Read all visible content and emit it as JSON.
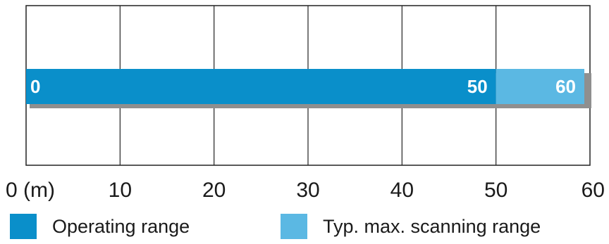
{
  "chart_data": {
    "type": "bar",
    "orientation": "horizontal",
    "xlim": [
      0,
      60
    ],
    "x_ticks": [
      {
        "value": 0,
        "label": "0 (m)"
      },
      {
        "value": 10,
        "label": "10"
      },
      {
        "value": 20,
        "label": "20"
      },
      {
        "value": 30,
        "label": "30"
      },
      {
        "value": 40,
        "label": "40"
      },
      {
        "value": 50,
        "label": "50"
      },
      {
        "value": 60,
        "label": "60"
      }
    ],
    "grid": true,
    "segments": [
      {
        "name": "Operating range",
        "start": 0,
        "end": 50,
        "start_label": "0",
        "end_label": "50",
        "color": "#0a8fca"
      },
      {
        "name": "Typ. max. scanning range",
        "start": 50,
        "end": 60,
        "end_label": "60",
        "color": "#5bb8e3"
      }
    ],
    "legend": {
      "placement": "bottom",
      "items": [
        {
          "label": "Operating range",
          "color": "#0a8fca"
        },
        {
          "label": "Typ. max. scanning range",
          "color": "#5bb8e3"
        }
      ]
    }
  }
}
